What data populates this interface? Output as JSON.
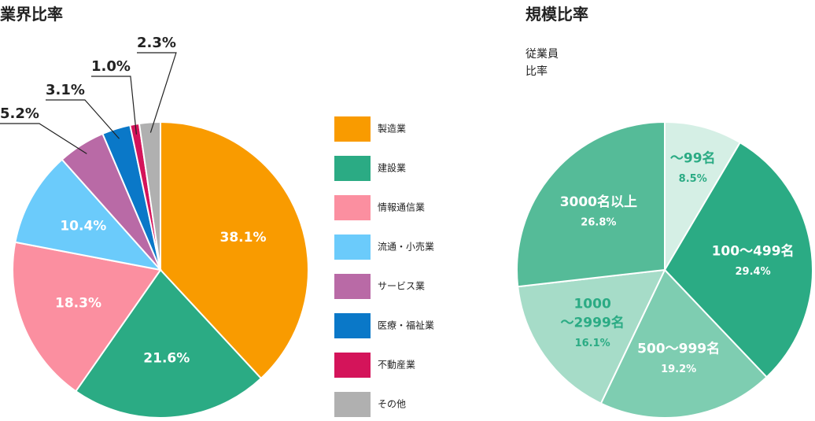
{
  "chart_data": [
    {
      "type": "pie",
      "title": "業界比率",
      "categories": [
        "製造業",
        "建設業",
        "情報通信業",
        "流通・小売業",
        "サービス業",
        "医療・福祉業",
        "不動産業",
        "その他"
      ],
      "values": [
        38.1,
        21.6,
        18.3,
        10.4,
        5.2,
        3.1,
        1.0,
        2.3
      ],
      "value_labels": [
        "38.1%",
        "21.6%",
        "18.3%",
        "10.4%",
        "5.2%",
        "3.1%",
        "1.0%",
        "2.3%"
      ],
      "colors": [
        "#f99b00",
        "#2bab84",
        "#fb8fa0",
        "#6bcbfb",
        "#b96aa6",
        "#0a78c8",
        "#d4145a",
        "#b0b0b0"
      ],
      "legend": "right"
    },
    {
      "type": "pie",
      "title": "規模比率",
      "subtitle": "従業員\n比率",
      "categories": [
        "〜99名",
        "100〜499名",
        "500〜999名",
        "1000\n〜2999名",
        "3000名以上"
      ],
      "values": [
        8.5,
        29.4,
        19.2,
        16.1,
        26.8
      ],
      "value_labels": [
        "8.5%",
        "29.4%",
        "19.2%",
        "16.1%",
        "26.8%"
      ],
      "colors": [
        "#d5efe5",
        "#2bab84",
        "#7ecdb1",
        "#a6dcc8",
        "#55bb98"
      ],
      "label_colors": [
        "#2bab84",
        "#ffffff",
        "#ffffff",
        "#2bab84",
        "#ffffff"
      ]
    }
  ]
}
